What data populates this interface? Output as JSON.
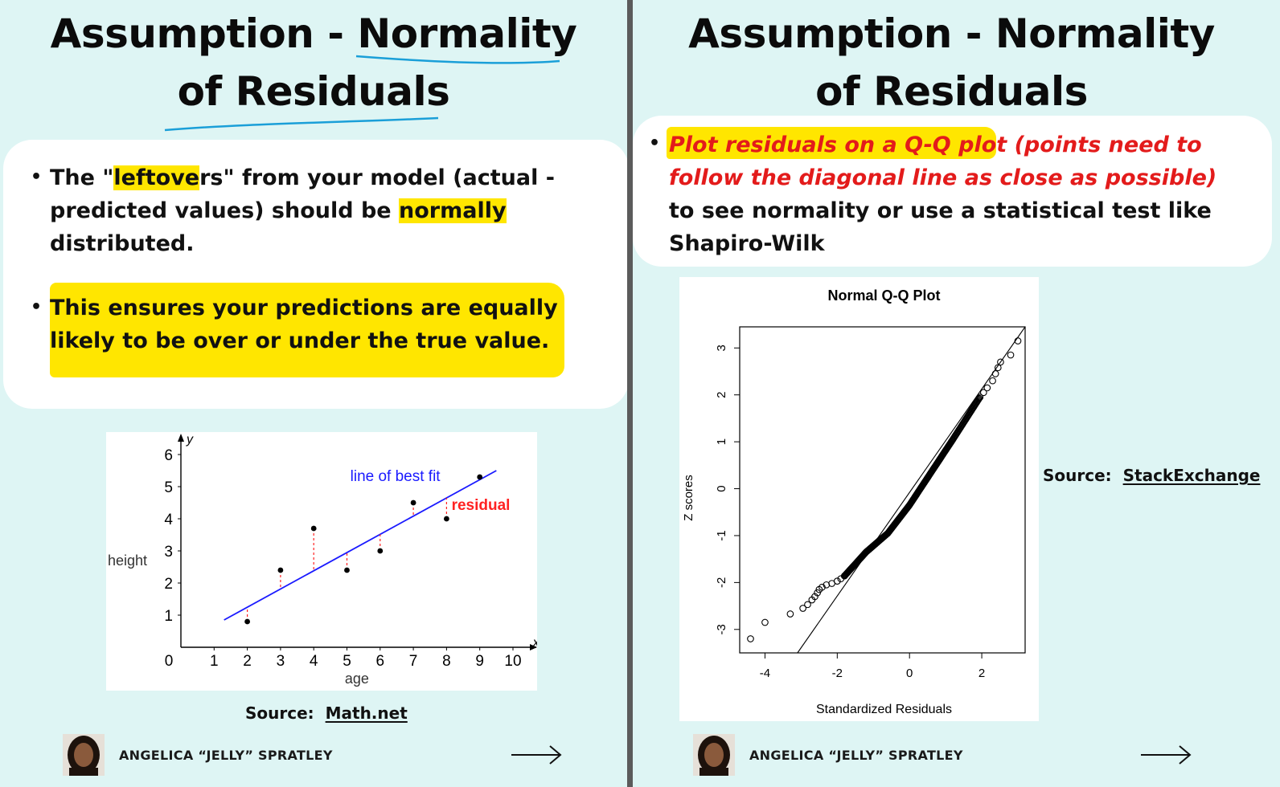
{
  "slide1": {
    "title_line1_a": "Assumption - ",
    "title_line1_b": "Normality",
    "title_line2": "of Residuals",
    "bullet1": {
      "t1": "The \"",
      "t2": "leftove",
      "t3": "rs\" from your model (actual -",
      "t4": "predicted values) should be ",
      "t5": "normally",
      "t6": "distributed."
    },
    "bullet2": {
      "line1": "This ensures your predictions are equally",
      "line2": "likely to be over or under the true value."
    },
    "source_label": "Source:",
    "source_link": "Math.net",
    "author": "ANGELICA “JELLY” SPRATLEY"
  },
  "slide2": {
    "title_line1": "Assumption - Normality",
    "title_line2": "of Residuals",
    "bullet": {
      "r1a": "Plot residuals on a Q-Q plo",
      "r1b": "t (points need to",
      "r2": "follow the diagonal line as close as possible)",
      "b1": "to see normality or use a statistical test like",
      "b2": "Shapiro-Wilk"
    },
    "source_label": "Source:",
    "source_link": "StackExchange",
    "author": "ANGELICA “JELLY” SPRATLEY"
  },
  "chart_data": [
    {
      "type": "scatter",
      "title": "",
      "xlabel": "age",
      "ylabel": "height",
      "x_axis_symbol": "x",
      "y_axis_symbol": "y",
      "xlim": [
        0,
        10
      ],
      "ylim": [
        0,
        6
      ],
      "x_ticks": [
        "0",
        "1",
        "2",
        "3",
        "4",
        "5",
        "6",
        "7",
        "8",
        "9",
        "10"
      ],
      "y_ticks": [
        "1",
        "2",
        "3",
        "4",
        "5",
        "6"
      ],
      "points": [
        {
          "x": 2,
          "y": 0.8
        },
        {
          "x": 3,
          "y": 2.4
        },
        {
          "x": 4,
          "y": 3.7
        },
        {
          "x": 5,
          "y": 2.4
        },
        {
          "x": 6,
          "y": 3.0
        },
        {
          "x": 7,
          "y": 4.5
        },
        {
          "x": 8,
          "y": 4.0
        },
        {
          "x": 9,
          "y": 5.3
        }
      ],
      "fit_line": {
        "x": [
          1.3,
          9.5
        ],
        "y": [
          0.85,
          5.5
        ]
      },
      "fit_label": "line of best fit",
      "residual_label": "residual",
      "colors": {
        "fit": "#1a1aff",
        "residual": "#ff2222",
        "points": "#000000"
      }
    },
    {
      "type": "scatter",
      "title": "Normal Q-Q Plot",
      "xlabel": "Standardized Residuals",
      "ylabel": "Z scores",
      "xlim": [
        -4.7,
        3.2
      ],
      "ylim": [
        -3.5,
        3.45
      ],
      "x_ticks": [
        -4,
        -2,
        0,
        2
      ],
      "y_ticks": [
        -3,
        -2,
        -1,
        0,
        1,
        2,
        3
      ],
      "reference_line": {
        "x": [
          -3.1,
          3.2
        ],
        "y": [
          -3.5,
          3.45
        ]
      },
      "points_sparse": [
        {
          "x": -4.4,
          "y": -3.2
        },
        {
          "x": -4.0,
          "y": -2.85
        },
        {
          "x": -3.3,
          "y": -2.67
        },
        {
          "x": -2.95,
          "y": -2.55
        },
        {
          "x": -2.82,
          "y": -2.47
        },
        {
          "x": -2.7,
          "y": -2.37
        },
        {
          "x": -2.62,
          "y": -2.3
        },
        {
          "x": -2.55,
          "y": -2.22
        },
        {
          "x": -2.5,
          "y": -2.15
        },
        {
          "x": -2.42,
          "y": -2.1
        },
        {
          "x": -2.3,
          "y": -2.05
        },
        {
          "x": -2.15,
          "y": -2.02
        },
        {
          "x": -2.0,
          "y": -1.97
        },
        {
          "x": -1.9,
          "y": -1.92
        },
        {
          "x": -1.8,
          "y": -1.86
        },
        {
          "x": 1.95,
          "y": 1.95
        },
        {
          "x": 2.05,
          "y": 2.05
        },
        {
          "x": 2.15,
          "y": 2.15
        },
        {
          "x": 2.3,
          "y": 2.3
        },
        {
          "x": 2.38,
          "y": 2.45
        },
        {
          "x": 2.45,
          "y": 2.58
        },
        {
          "x": 2.52,
          "y": 2.7
        },
        {
          "x": 2.8,
          "y": 2.85
        },
        {
          "x": 3.0,
          "y": 3.15
        }
      ],
      "dense_band": {
        "x": [
          -1.8,
          -1.2,
          -0.6,
          0.0,
          0.6,
          1.2,
          1.95
        ],
        "y": [
          -1.86,
          -1.35,
          -0.95,
          -0.35,
          0.35,
          1.05,
          1.95
        ]
      }
    }
  ]
}
